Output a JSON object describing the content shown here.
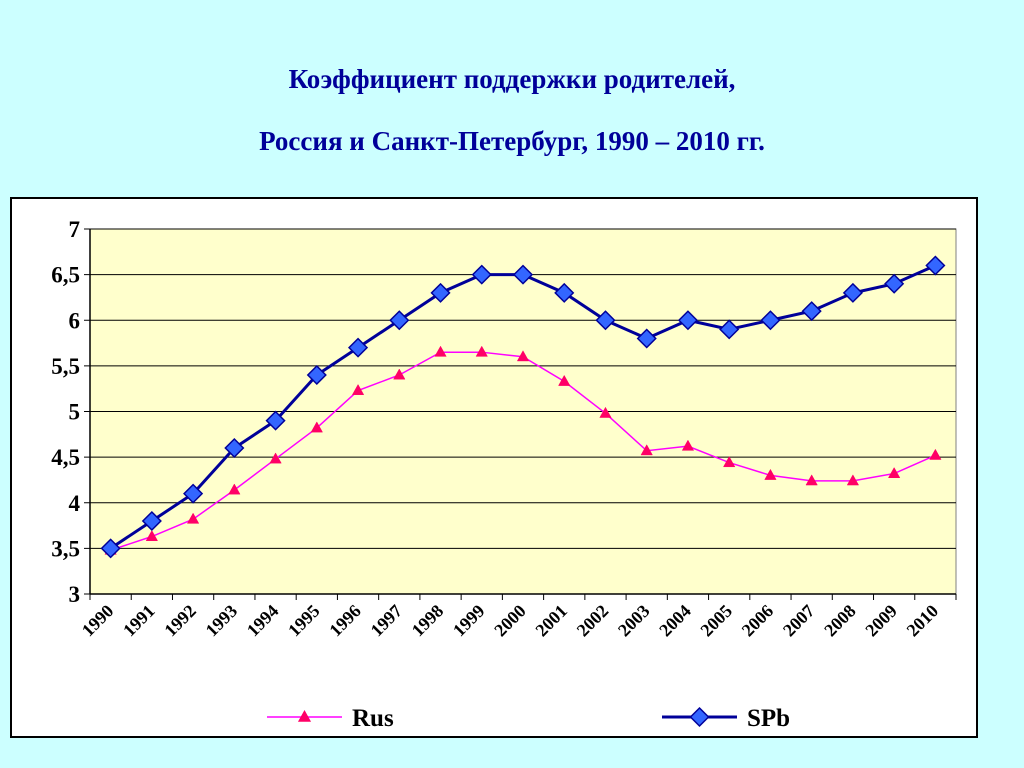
{
  "title": {
    "line1": "Коэффициент поддержки родителей,",
    "line2": "Россия и Санкт-Петербург, 1990 – 2010 гг."
  },
  "colors": {
    "background": "#ccffff",
    "plot_area": "#ffffcc",
    "rus_line": "#ff00ff",
    "rus_marker": "#ff0066",
    "spb_line": "#000099",
    "spb_marker": "#3366ff",
    "title": "#000099"
  },
  "chart_data": {
    "type": "line",
    "title": "Коэффициент поддержки родителей, Россия и Санкт-Петербург, 1990 – 2010 гг.",
    "xlabel": "",
    "ylabel": "",
    "categories": [
      "1990",
      "1991",
      "1992",
      "1993",
      "1994",
      "1995",
      "1996",
      "1997",
      "1998",
      "1999",
      "2000",
      "2001",
      "2002",
      "2003",
      "2004",
      "2005",
      "2006",
      "2007",
      "2008",
      "2009",
      "2010"
    ],
    "ylim": [
      3,
      7
    ],
    "yticks": [
      "3",
      "3,5",
      "4",
      "4,5",
      "5",
      "5,5",
      "6",
      "6,5",
      "7"
    ],
    "grid": true,
    "legend_position": "bottom",
    "series": [
      {
        "name": "Rus",
        "marker": "triangle",
        "values": [
          3.48,
          3.63,
          3.82,
          4.14,
          4.48,
          4.82,
          5.23,
          5.4,
          5.65,
          5.65,
          5.6,
          5.33,
          4.98,
          4.57,
          4.62,
          4.44,
          4.3,
          4.24,
          4.24,
          4.32,
          4.52
        ]
      },
      {
        "name": "SPb",
        "marker": "diamond",
        "values": [
          3.5,
          3.8,
          4.1,
          4.6,
          4.9,
          5.4,
          5.7,
          6.0,
          6.3,
          6.5,
          6.5,
          6.3,
          6.0,
          5.8,
          6.0,
          5.9,
          6.0,
          6.1,
          6.3,
          6.4,
          6.6
        ]
      }
    ]
  }
}
